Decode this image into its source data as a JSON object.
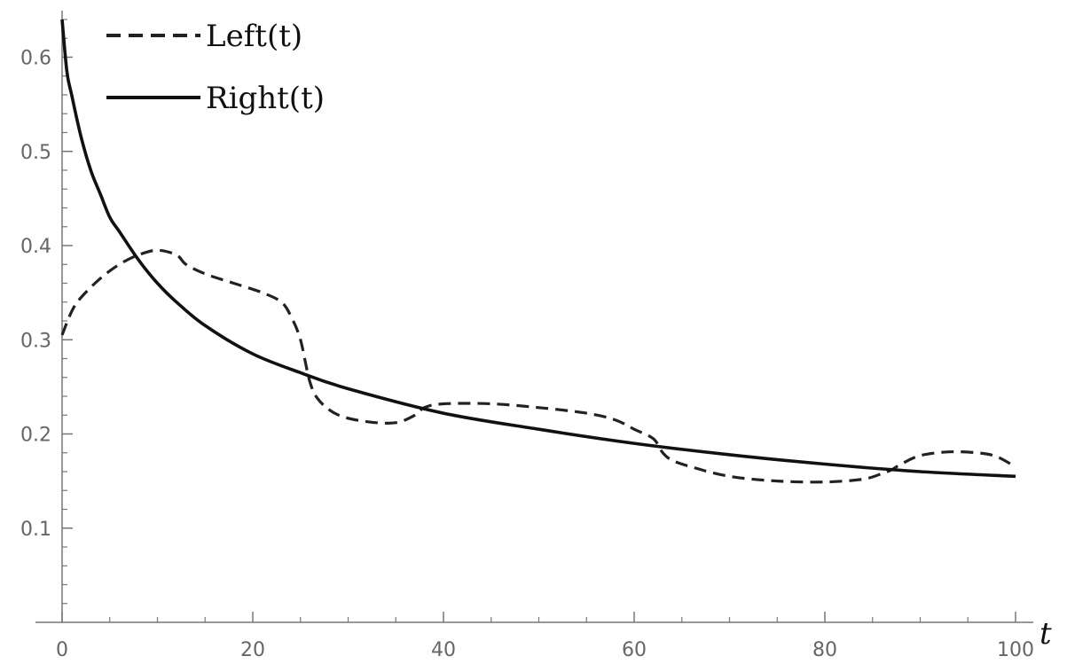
{
  "chart_data": {
    "type": "line",
    "title": "",
    "xlabel": "t",
    "ylabel": "",
    "xlim": [
      0,
      100
    ],
    "ylim": [
      0,
      0.64
    ],
    "x_ticks": [
      0,
      20,
      40,
      60,
      80,
      100
    ],
    "x_tick_labels": [
      "0",
      "20",
      "40",
      "60",
      "80",
      "100"
    ],
    "y_ticks": [
      0.1,
      0.2,
      0.3,
      0.4,
      0.5,
      0.6
    ],
    "y_tick_labels": [
      "0.1",
      "0.2",
      "0.3",
      "0.4",
      "0.5",
      "0.6"
    ],
    "grid": false,
    "legend_position": "top-left",
    "series": [
      {
        "name": "Left(t)",
        "style": "dashed",
        "color": "#222222",
        "x": [
          0,
          1,
          2,
          4,
          6,
          8,
          10,
          12,
          13,
          15,
          18,
          21,
          23,
          24,
          25,
          26,
          27,
          29,
          32,
          35,
          37,
          38,
          40,
          45,
          50,
          55,
          58,
          60,
          62,
          63,
          64,
          66,
          70,
          75,
          80,
          84,
          86,
          87,
          88,
          90,
          93,
          96,
          98,
          100
        ],
        "y": [
          0.305,
          0.33,
          0.345,
          0.365,
          0.38,
          0.39,
          0.395,
          0.39,
          0.38,
          0.37,
          0.36,
          0.35,
          0.34,
          0.325,
          0.3,
          0.255,
          0.235,
          0.22,
          0.213,
          0.212,
          0.22,
          0.228,
          0.232,
          0.232,
          0.228,
          0.222,
          0.215,
          0.205,
          0.195,
          0.18,
          0.172,
          0.165,
          0.155,
          0.15,
          0.149,
          0.152,
          0.158,
          0.162,
          0.168,
          0.177,
          0.181,
          0.18,
          0.176,
          0.165
        ]
      },
      {
        "name": "Right(t)",
        "style": "solid",
        "color": "#111111",
        "x": [
          0,
          0.5,
          1,
          2,
          3,
          4,
          5,
          6,
          8,
          10,
          12,
          15,
          20,
          25,
          30,
          40,
          50,
          60,
          70,
          80,
          90,
          100
        ],
        "y": [
          0.64,
          0.585,
          0.56,
          0.515,
          0.48,
          0.455,
          0.43,
          0.415,
          0.385,
          0.36,
          0.34,
          0.315,
          0.285,
          0.265,
          0.248,
          0.222,
          0.205,
          0.19,
          0.178,
          0.168,
          0.16,
          0.155
        ]
      }
    ]
  }
}
